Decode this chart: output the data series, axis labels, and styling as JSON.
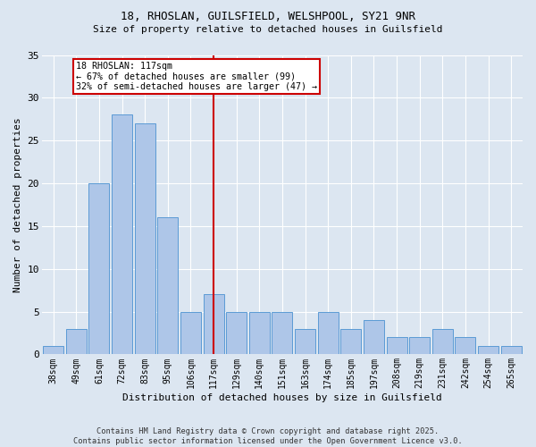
{
  "title1": "18, RHOSLAN, GUILSFIELD, WELSHPOOL, SY21 9NR",
  "title2": "Size of property relative to detached houses in Guilsfield",
  "xlabel": "Distribution of detached houses by size in Guilsfield",
  "ylabel": "Number of detached properties",
  "categories": [
    "38sqm",
    "49sqm",
    "61sqm",
    "72sqm",
    "83sqm",
    "95sqm",
    "106sqm",
    "117sqm",
    "129sqm",
    "140sqm",
    "151sqm",
    "163sqm",
    "174sqm",
    "185sqm",
    "197sqm",
    "208sqm",
    "219sqm",
    "231sqm",
    "242sqm",
    "254sqm",
    "265sqm"
  ],
  "values": [
    1,
    3,
    20,
    28,
    27,
    16,
    5,
    7,
    5,
    5,
    5,
    3,
    5,
    3,
    4,
    2,
    2,
    3,
    2,
    1,
    1
  ],
  "bar_color": "#aec6e8",
  "bar_edge_color": "#5b9bd5",
  "highlight_index": 7,
  "highlight_color": "#cc0000",
  "annotation_line1": "18 RHOSLAN: 117sqm",
  "annotation_line2": "← 67% of detached houses are smaller (99)",
  "annotation_line3": "32% of semi-detached houses are larger (47) →",
  "annotation_box_color": "#cc0000",
  "bg_color": "#dce6f1",
  "plot_bg_color": "#dce6f1",
  "footer": "Contains HM Land Registry data © Crown copyright and database right 2025.\nContains public sector information licensed under the Open Government Licence v3.0.",
  "ylim": [
    0,
    35
  ],
  "yticks": [
    0,
    5,
    10,
    15,
    20,
    25,
    30,
    35
  ]
}
